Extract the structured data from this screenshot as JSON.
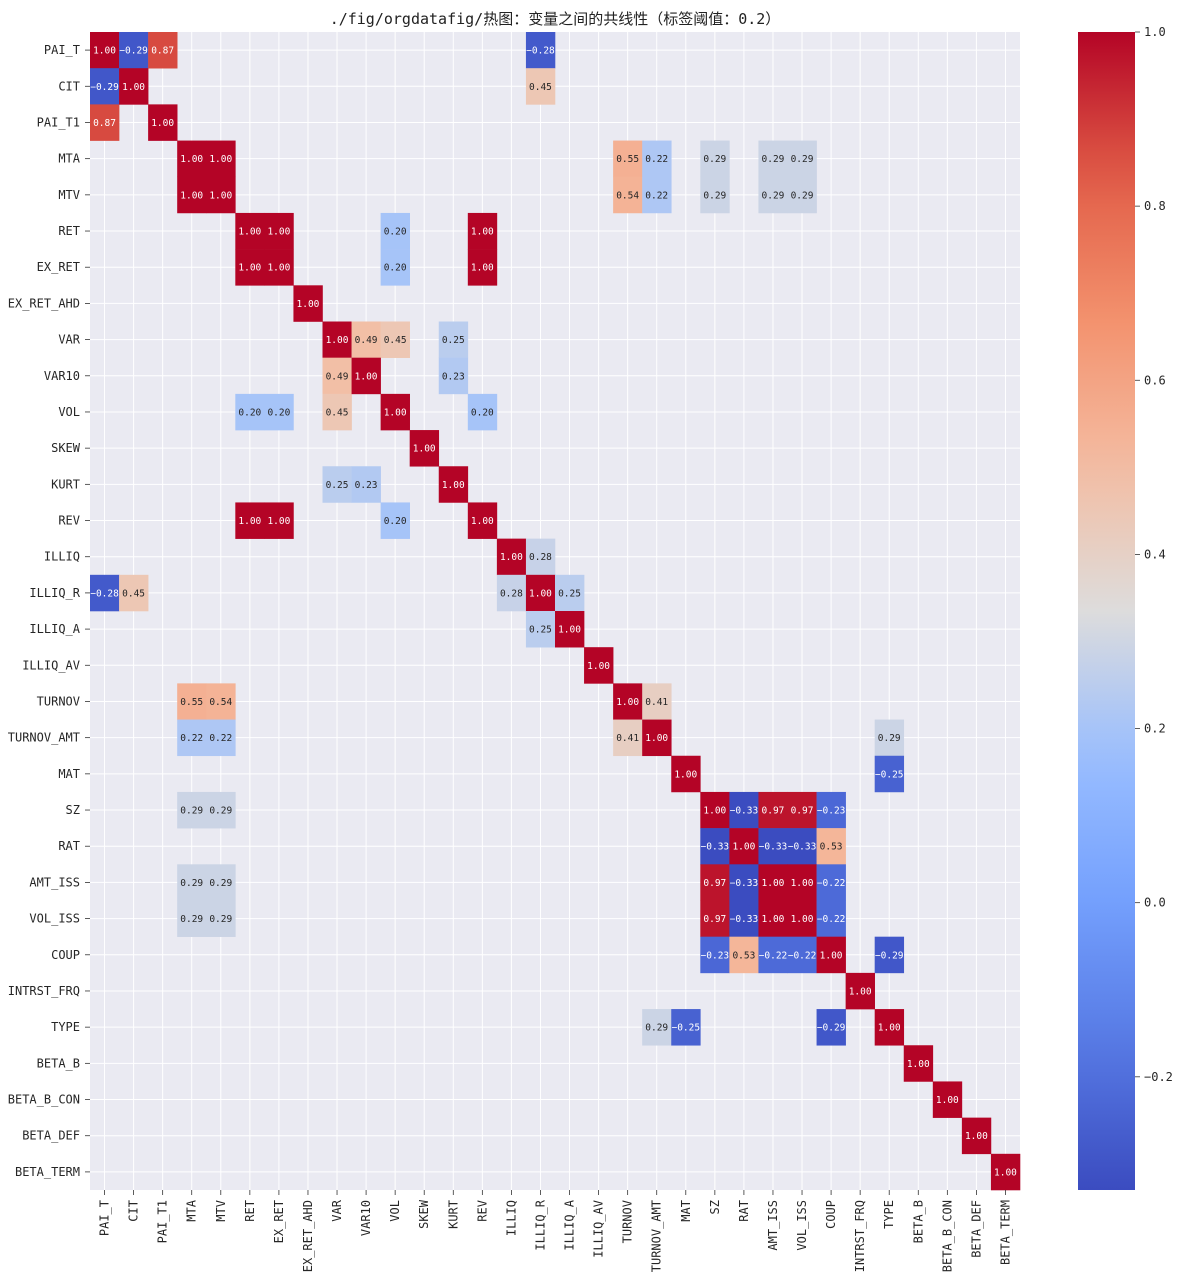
{
  "chart_data": {
    "type": "heatmap",
    "title": "./fig/orgdatafig/热图：变量之间的共线性（标签阈值：0.2）",
    "labels": [
      "PAI_T",
      "CIT",
      "PAI_T1",
      "MTA",
      "MTV",
      "RET",
      "EX_RET",
      "EX_RET_AHD",
      "VAR",
      "VAR10",
      "VOL",
      "SKEW",
      "KURT",
      "REV",
      "ILLIQ",
      "ILLIQ_R",
      "ILLIQ_A",
      "ILLIQ_AV",
      "TURNOV",
      "TURNOV_AMT",
      "MAT",
      "SZ",
      "RAT",
      "AMT_ISS",
      "VOL_ISS",
      "COUP",
      "INTRST_FRQ",
      "TYPE",
      "BETA_B",
      "BETA_B_CON",
      "BETA_DEF",
      "BETA_TERM"
    ],
    "threshold": 0.2,
    "value_format": "2 decimals",
    "cells": [
      [
        "PAI_T",
        "PAI_T",
        1.0
      ],
      [
        "PAI_T",
        "CIT",
        -0.29
      ],
      [
        "PAI_T",
        "PAI_T1",
        0.87
      ],
      [
        "PAI_T",
        "ILLIQ_R",
        -0.28
      ],
      [
        "CIT",
        "CIT",
        1.0
      ],
      [
        "CIT",
        "ILLIQ_R",
        0.45
      ],
      [
        "PAI_T1",
        "PAI_T1",
        1.0
      ],
      [
        "MTA",
        "MTA",
        1.0
      ],
      [
        "MTA",
        "MTV",
        1.0
      ],
      [
        "MTA",
        "TURNOV",
        0.55
      ],
      [
        "MTA",
        "TURNOV_AMT",
        0.22
      ],
      [
        "MTA",
        "SZ",
        0.29
      ],
      [
        "MTA",
        "AMT_ISS",
        0.29
      ],
      [
        "MTA",
        "VOL_ISS",
        0.29
      ],
      [
        "MTV",
        "MTV",
        1.0
      ],
      [
        "MTV",
        "TURNOV",
        0.54
      ],
      [
        "MTV",
        "TURNOV_AMT",
        0.22
      ],
      [
        "MTV",
        "SZ",
        0.29
      ],
      [
        "MTV",
        "AMT_ISS",
        0.29
      ],
      [
        "MTV",
        "VOL_ISS",
        0.29
      ],
      [
        "RET",
        "RET",
        1.0
      ],
      [
        "RET",
        "EX_RET",
        1.0
      ],
      [
        "RET",
        "VOL",
        0.2
      ],
      [
        "RET",
        "REV",
        1.0
      ],
      [
        "EX_RET",
        "EX_RET",
        1.0
      ],
      [
        "EX_RET",
        "VOL",
        0.2
      ],
      [
        "EX_RET",
        "REV",
        1.0
      ],
      [
        "EX_RET_AHD",
        "EX_RET_AHD",
        1.0
      ],
      [
        "VAR",
        "VAR",
        1.0
      ],
      [
        "VAR",
        "VAR10",
        0.49
      ],
      [
        "VAR",
        "VOL",
        0.45
      ],
      [
        "VAR",
        "KURT",
        0.25
      ],
      [
        "VAR10",
        "VAR10",
        1.0
      ],
      [
        "VAR10",
        "KURT",
        0.23
      ],
      [
        "VOL",
        "VOL",
        1.0
      ],
      [
        "VOL",
        "REV",
        0.2
      ],
      [
        "SKEW",
        "SKEW",
        1.0
      ],
      [
        "KURT",
        "KURT",
        1.0
      ],
      [
        "REV",
        "REV",
        1.0
      ],
      [
        "ILLIQ",
        "ILLIQ",
        1.0
      ],
      [
        "ILLIQ",
        "ILLIQ_R",
        0.28
      ],
      [
        "ILLIQ_R",
        "ILLIQ_R",
        1.0
      ],
      [
        "ILLIQ_R",
        "ILLIQ_A",
        0.25
      ],
      [
        "ILLIQ_A",
        "ILLIQ_A",
        1.0
      ],
      [
        "ILLIQ_AV",
        "ILLIQ_AV",
        1.0
      ],
      [
        "TURNOV",
        "TURNOV",
        1.0
      ],
      [
        "TURNOV",
        "TURNOV_AMT",
        0.41
      ],
      [
        "TURNOV_AMT",
        "TURNOV_AMT",
        1.0
      ],
      [
        "TURNOV_AMT",
        "TYPE",
        0.29
      ],
      [
        "MAT",
        "MAT",
        1.0
      ],
      [
        "MAT",
        "TYPE",
        -0.25
      ],
      [
        "SZ",
        "SZ",
        1.0
      ],
      [
        "SZ",
        "RAT",
        -0.33
      ],
      [
        "SZ",
        "AMT_ISS",
        0.97
      ],
      [
        "SZ",
        "VOL_ISS",
        0.97
      ],
      [
        "SZ",
        "COUP",
        -0.23
      ],
      [
        "RAT",
        "RAT",
        1.0
      ],
      [
        "RAT",
        "AMT_ISS",
        -0.33
      ],
      [
        "RAT",
        "VOL_ISS",
        -0.33
      ],
      [
        "RAT",
        "COUP",
        0.53
      ],
      [
        "AMT_ISS",
        "AMT_ISS",
        1.0
      ],
      [
        "AMT_ISS",
        "VOL_ISS",
        1.0
      ],
      [
        "AMT_ISS",
        "COUP",
        -0.22
      ],
      [
        "VOL_ISS",
        "VOL_ISS",
        1.0
      ],
      [
        "VOL_ISS",
        "COUP",
        -0.22
      ],
      [
        "COUP",
        "COUP",
        1.0
      ],
      [
        "COUP",
        "TYPE",
        -0.29
      ],
      [
        "INTRST_FRQ",
        "INTRST_FRQ",
        1.0
      ],
      [
        "TYPE",
        "TYPE",
        1.0
      ],
      [
        "BETA_B",
        "BETA_B",
        1.0
      ],
      [
        "BETA_B_CON",
        "BETA_B_CON",
        1.0
      ],
      [
        "BETA_DEF",
        "BETA_DEF",
        1.0
      ],
      [
        "BETA_TERM",
        "BETA_TERM",
        1.0
      ]
    ],
    "colorbar": {
      "colormap": "coolwarm",
      "vmin": -0.33,
      "vmax": 1.0,
      "ticks": [
        "1.0",
        "0.8",
        "0.6",
        "0.4",
        "0.2",
        "0.0",
        "−0.2"
      ]
    },
    "grid": true,
    "background": "#eaeaf2",
    "grid_color": "#ffffff"
  }
}
